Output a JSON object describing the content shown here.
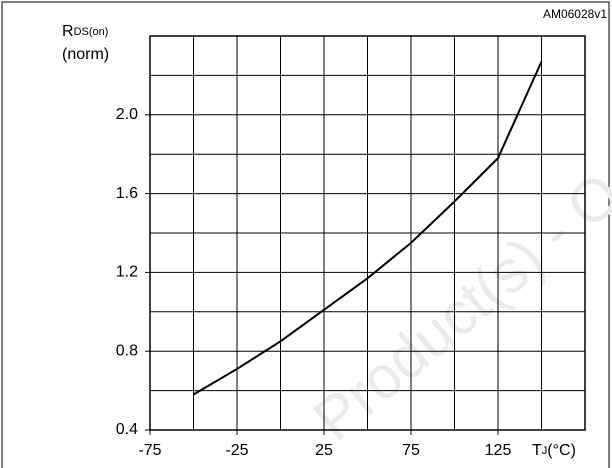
{
  "chart_data": {
    "type": "line",
    "figure_id": "AM06028v1",
    "ylabel": {
      "main": "R",
      "sub": "DS(on)",
      "unit": "(norm)"
    },
    "xlabel": {
      "main": "T",
      "sub": "J",
      "unit": "(°C)"
    },
    "watermark": "Product(s) - O",
    "x": [
      -50,
      -25,
      0,
      25,
      50,
      75,
      100,
      125,
      150
    ],
    "series": [
      {
        "color": "#000000",
        "values": [
          0.58,
          0.71,
          0.85,
          1.01,
          1.17,
          1.35,
          1.56,
          1.78,
          2.27
        ]
      }
    ],
    "xlim": [
      -75,
      175
    ],
    "xticks": [
      -75,
      -25,
      25,
      75,
      125
    ],
    "xgrid": [
      -50,
      -25,
      0,
      25,
      50,
      75,
      100,
      125,
      150
    ],
    "ylim": [
      0.4,
      2.4
    ],
    "yticks": [
      0.4,
      0.8,
      1.2,
      1.6,
      {
        "value": 2,
        "label": "2.0"
      }
    ],
    "ygrid": [
      0.6,
      0.8,
      1.0,
      1.2,
      1.4,
      1.6,
      1.8,
      2.0,
      2.2
    ],
    "grid": true
  }
}
